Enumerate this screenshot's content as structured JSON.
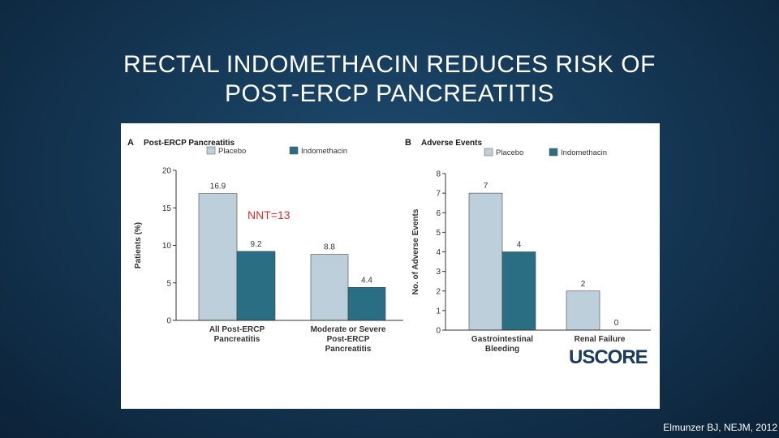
{
  "slide": {
    "title_line1": "RECTAL INDOMETHACIN REDUCES RISK OF",
    "title_line2": "POST-ERCP PANCREATITIS",
    "citation": "Elmunzer BJ, NEJM, 2012",
    "logo_us": "USC",
    "logo_core": "ORE"
  },
  "colors": {
    "placebo": "#bccfda",
    "indomethacin": "#2a6e84",
    "nnt": "#d9302c",
    "axis": "#333333"
  },
  "chart_data": [
    {
      "type": "bar",
      "panel_letter": "A",
      "title": "Post-ERCP Pancreatitis",
      "ylabel": "Patients (%)",
      "ylim": [
        0,
        20
      ],
      "yticks": [
        0,
        5,
        10,
        15,
        20
      ],
      "categories": [
        [
          "All Post-ERCP",
          "Pancreatitis"
        ],
        [
          "Moderate or Severe",
          "Post-ERCP",
          "Pancreatitis"
        ]
      ],
      "series": [
        {
          "name": "Placebo",
          "values": [
            16.9,
            8.8
          ],
          "labels": [
            "16.9",
            "8.8"
          ]
        },
        {
          "name": "Indomethacin",
          "values": [
            9.2,
            4.4
          ],
          "labels": [
            "9.2",
            "4.4"
          ]
        }
      ],
      "annotation": "NNT=13",
      "legend": "top-left"
    },
    {
      "type": "bar",
      "panel_letter": "B",
      "title": "Adverse Events",
      "ylabel": "No. of Adverse Events",
      "ylim": [
        0,
        8
      ],
      "yticks": [
        0,
        1,
        2,
        3,
        4,
        5,
        6,
        7,
        8
      ],
      "categories": [
        [
          "Gastrointestinal",
          "Bleeding"
        ],
        [
          "Renal Failure"
        ]
      ],
      "series": [
        {
          "name": "Placebo",
          "values": [
            7,
            2
          ],
          "labels": [
            "7",
            "2"
          ]
        },
        {
          "name": "Indomethacin",
          "values": [
            4,
            0
          ],
          "labels": [
            "4",
            "0"
          ]
        }
      ],
      "legend": "top-left"
    }
  ]
}
